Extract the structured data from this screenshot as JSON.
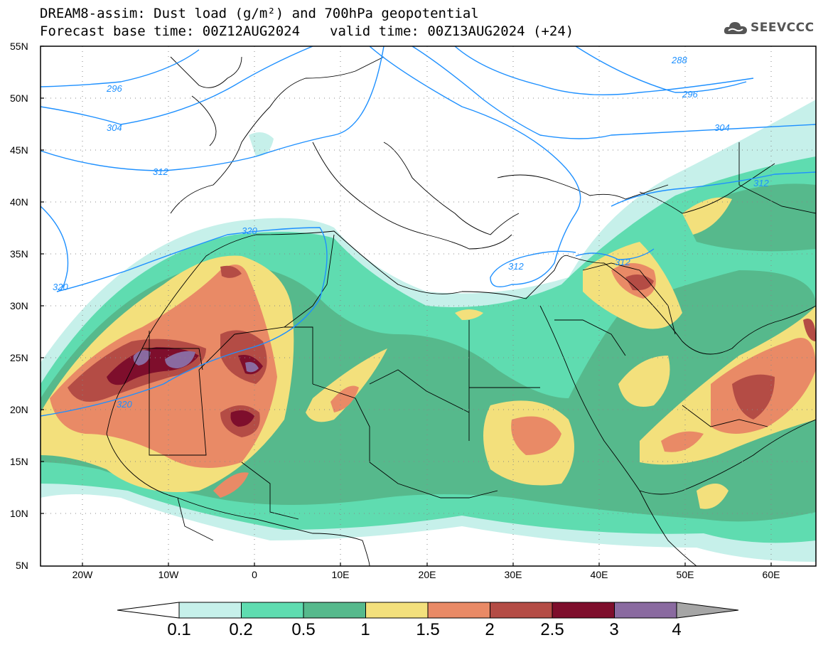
{
  "header": {
    "line1": "DREAM8-assim: Dust load (g/m²) and 700hPa geopotential",
    "base_time": "Forecast base time: 00Z12AUG2024",
    "valid_time": "valid time: 00Z13AUG2024 (+24)"
  },
  "logo": {
    "text": "SEEVCCC",
    "icon": "cloud-icon"
  },
  "map": {
    "lat_labels": [
      "55N",
      "50N",
      "45N",
      "40N",
      "35N",
      "30N",
      "25N",
      "20N",
      "15N",
      "10N",
      "5N"
    ],
    "lon_labels": [
      "20W",
      "10W",
      "0",
      "10E",
      "20E",
      "30E",
      "40E",
      "50E",
      "60E"
    ],
    "contour_labels": [
      "296",
      "304",
      "312",
      "320",
      "320",
      "320",
      "288",
      "296",
      "304",
      "312",
      "312",
      "312"
    ]
  },
  "colorbar": {
    "labels": [
      "0.1",
      "0.2",
      "0.5",
      "1",
      "1.5",
      "2",
      "2.5",
      "3",
      "4"
    ],
    "colors": [
      "#c6f0ea",
      "#5fdcb0",
      "#56b98c",
      "#f3e07c",
      "#e98a66",
      "#b44c45",
      "#7e0e2c",
      "#8a6aa0"
    ],
    "over_color": "#a6a6a6",
    "under_color": "#ffffff"
  }
}
